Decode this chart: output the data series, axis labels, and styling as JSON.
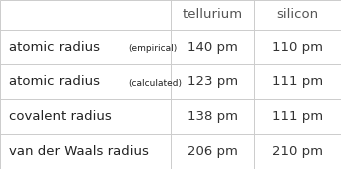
{
  "col_headers": [
    "",
    "tellurium",
    "silicon"
  ],
  "rows": [
    {
      "label_main": "atomic radius",
      "label_sub": "(empirical)",
      "tellurium": "140 pm",
      "silicon": "110 pm"
    },
    {
      "label_main": "atomic radius",
      "label_sub": "(calculated)",
      "tellurium": "123 pm",
      "silicon": "111 pm"
    },
    {
      "label_main": "covalent radius",
      "label_sub": "",
      "tellurium": "138 pm",
      "silicon": "111 pm"
    },
    {
      "label_main": "van der Waals radius",
      "label_sub": "",
      "tellurium": "206 pm",
      "silicon": "210 pm"
    }
  ],
  "bg_color": "#ffffff",
  "grid_color": "#cccccc",
  "header_text_color": "#555555",
  "row_text_color": "#222222",
  "value_text_color": "#333333",
  "header_font_size": 9.5,
  "label_main_font_size": 9.5,
  "label_sub_font_size": 6.5,
  "value_font_size": 9.5,
  "figwidth": 3.41,
  "figheight": 1.69,
  "dpi": 100
}
